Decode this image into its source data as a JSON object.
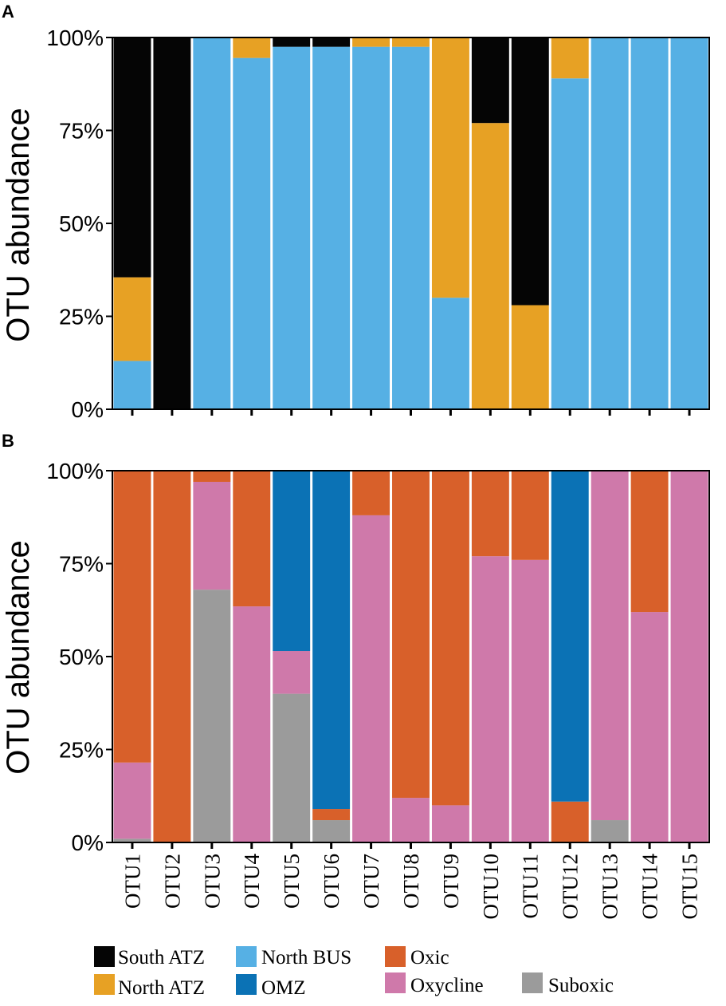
{
  "chart_data": [
    {
      "panel": "A",
      "type": "bar",
      "stacked": true,
      "normalized": true,
      "ylabel": "OTU abundance",
      "ytick_labels": [
        "0%",
        "25%",
        "50%",
        "75%",
        "100%"
      ],
      "ylim": [
        0,
        100
      ],
      "categories": [
        "OTU1",
        "OTU2",
        "OTU3",
        "OTU4",
        "OTU5",
        "OTU6",
        "OTU7",
        "OTU8",
        "OTU9",
        "OTU10",
        "OTU11",
        "OTU12",
        "OTU13",
        "OTU14",
        "OTU15"
      ],
      "show_x_tick_labels": false,
      "series": [
        {
          "name": "North BUS",
          "color": "#56b0e4",
          "values": [
            13,
            0,
            100,
            94.5,
            97.5,
            97.5,
            97.5,
            97.5,
            30,
            0,
            0,
            89,
            100,
            100,
            100
          ]
        },
        {
          "name": "North ATZ",
          "color": "#e7a124",
          "values": [
            22.5,
            0,
            0,
            5.5,
            0,
            0,
            2.5,
            2.5,
            70,
            77,
            28,
            11,
            0,
            0,
            0
          ]
        },
        {
          "name": "South ATZ",
          "color": "#050505",
          "values": [
            64.5,
            100,
            0,
            0,
            2.5,
            2.5,
            0,
            0,
            0,
            23,
            72,
            0,
            0,
            0,
            0
          ]
        },
        {
          "name": "OMZ",
          "color": "#0b72b5",
          "values": [
            0,
            0,
            0,
            0,
            0,
            0,
            0,
            0,
            0,
            0,
            0,
            0,
            0,
            0,
            0
          ]
        }
      ]
    },
    {
      "panel": "B",
      "type": "bar",
      "stacked": true,
      "normalized": true,
      "ylabel": "OTU abundance",
      "ytick_labels": [
        "0%",
        "25%",
        "50%",
        "75%",
        "100%"
      ],
      "ylim": [
        0,
        100
      ],
      "categories": [
        "OTU1",
        "OTU2",
        "OTU3",
        "OTU4",
        "OTU5",
        "OTU6",
        "OTU7",
        "OTU8",
        "OTU9",
        "OTU10",
        "OTU11",
        "OTU12",
        "OTU13",
        "OTU14",
        "OTU15"
      ],
      "show_x_tick_labels": true,
      "series": [
        {
          "name": "Suboxic",
          "color": "#9b9b9b",
          "values": [
            1,
            0,
            68,
            0,
            40,
            6,
            0,
            0,
            0,
            0,
            0,
            0,
            6,
            0,
            0
          ]
        },
        {
          "name": "Oxycline",
          "color": "#cf79aa",
          "values": [
            20.5,
            0,
            29,
            63.5,
            11.5,
            0,
            88,
            12,
            10,
            77,
            76,
            0,
            94,
            62,
            100
          ]
        },
        {
          "name": "Oxic",
          "color": "#d8602a",
          "values": [
            78.5,
            100,
            3,
            36.5,
            0,
            3,
            12,
            88,
            90,
            23,
            24,
            11,
            0,
            38,
            0
          ]
        },
        {
          "name": "OMZ",
          "color": "#0b72b5",
          "values": [
            0,
            0,
            0,
            0,
            48.5,
            91,
            0,
            0,
            0,
            0,
            0,
            89,
            0,
            0,
            0
          ]
        }
      ]
    }
  ],
  "legend": {
    "items": [
      {
        "label": "South ATZ",
        "color": "#050505"
      },
      {
        "label": "North BUS",
        "color": "#56b0e4"
      },
      {
        "label": "Oxic",
        "color": "#d8602a"
      },
      {
        "label": "North ATZ",
        "color": "#e7a124"
      },
      {
        "label": "OMZ",
        "color": "#0b72b5"
      },
      {
        "label": "Oxycline",
        "color": "#cf79aa"
      },
      {
        "label": "Suboxic",
        "color": "#9b9b9b"
      }
    ]
  }
}
